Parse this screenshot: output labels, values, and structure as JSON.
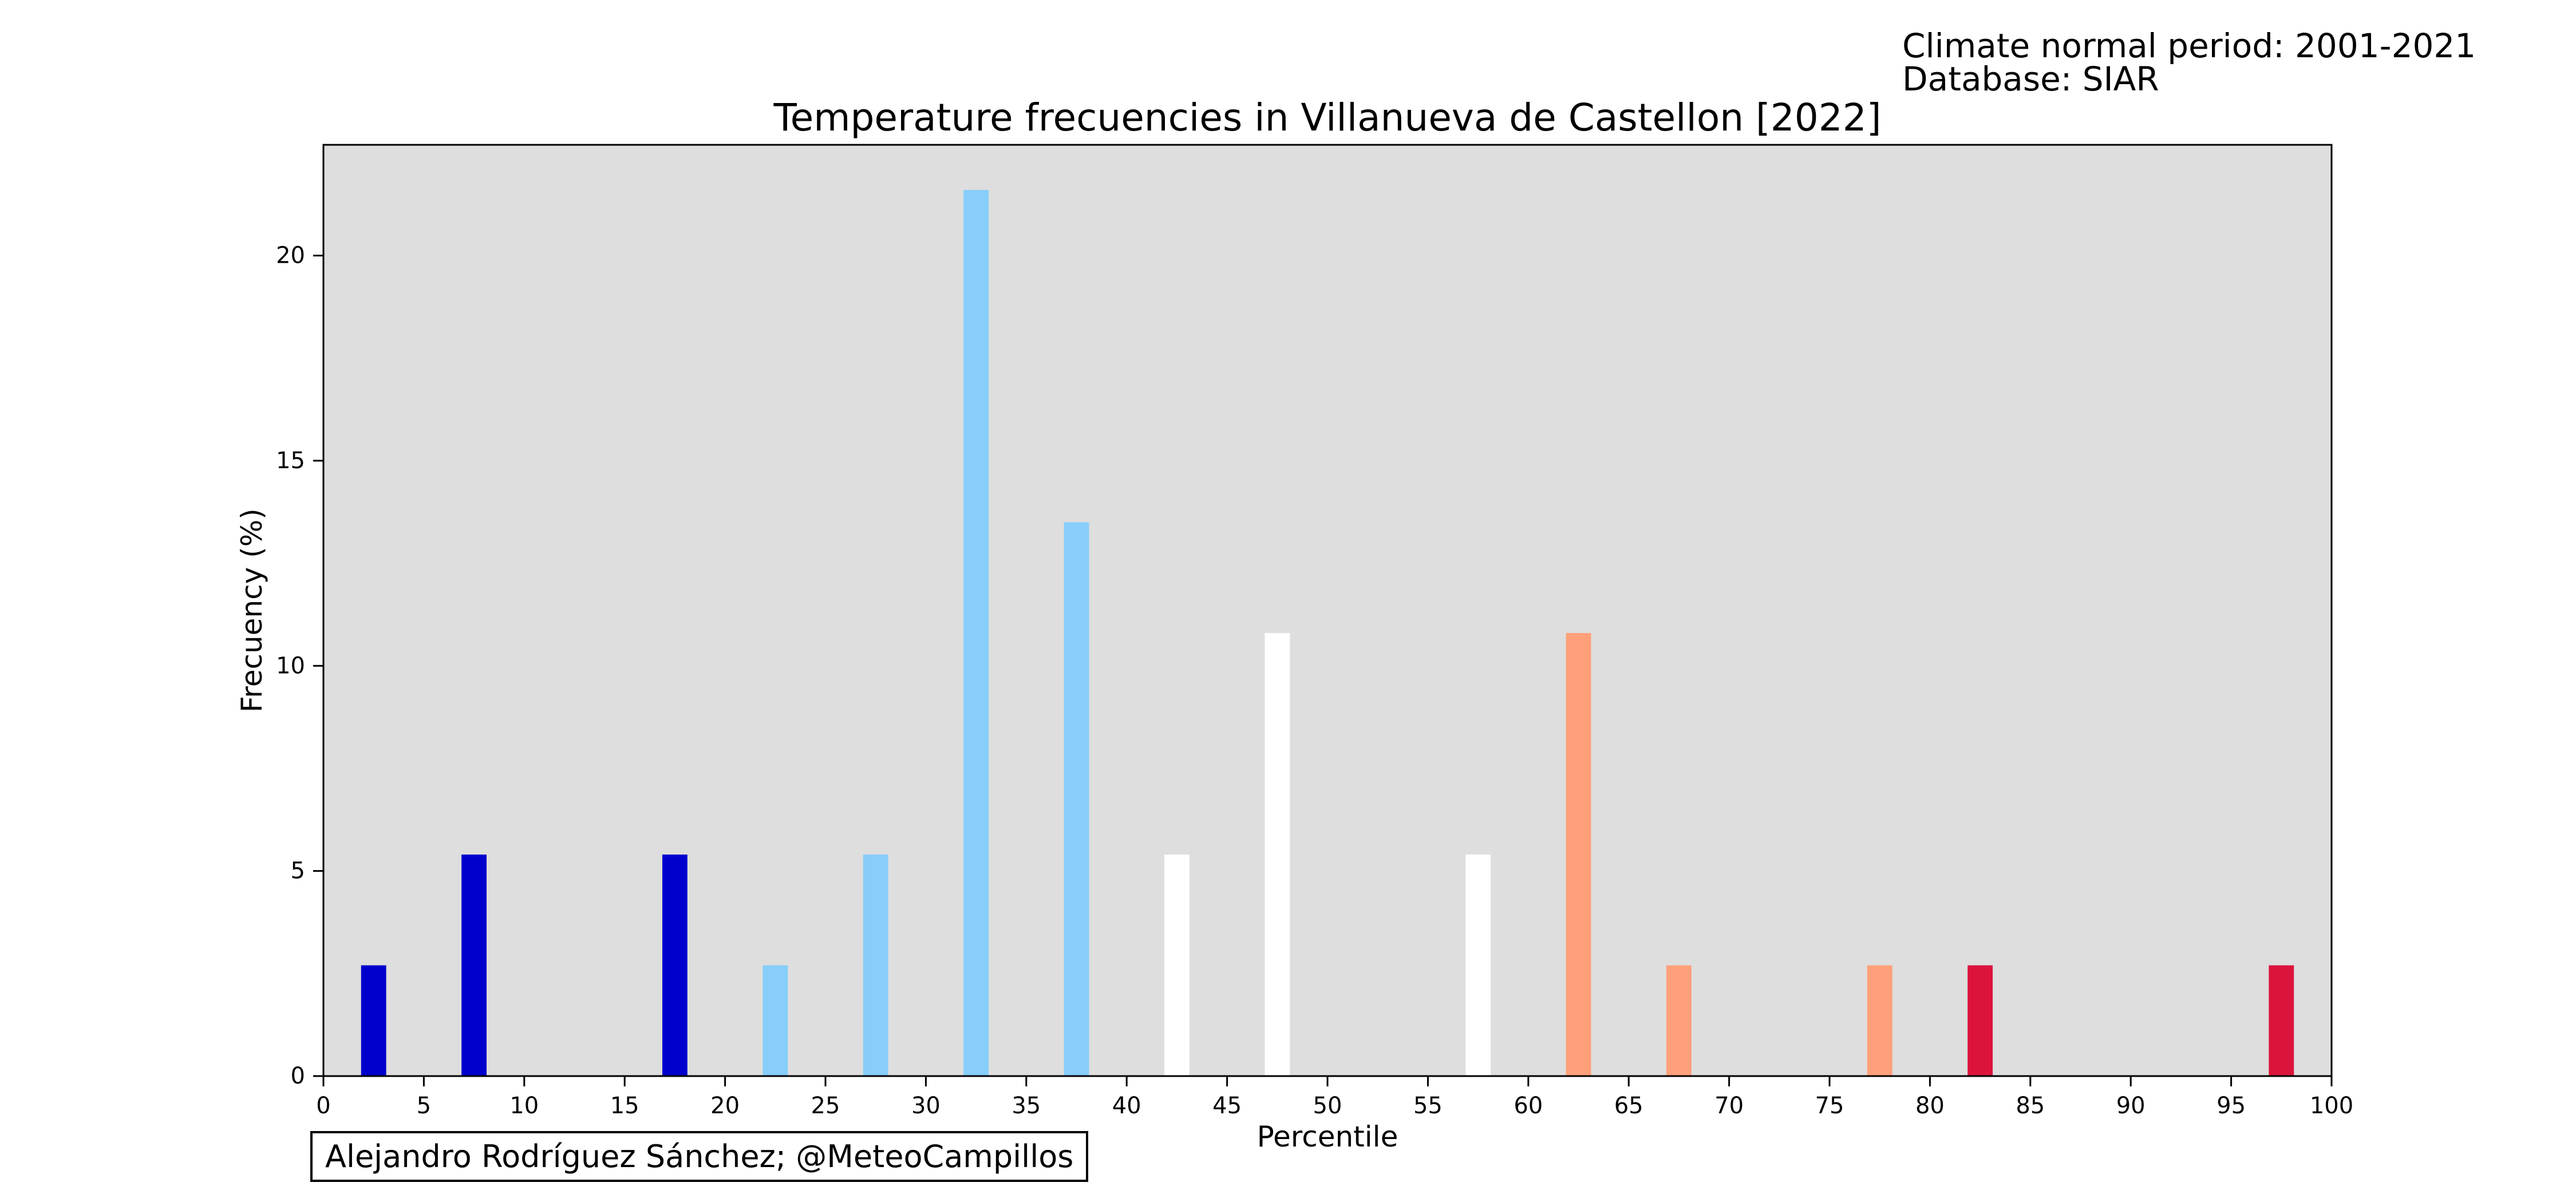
{
  "header": {
    "climate_period": "Climate normal period: 2001-2021",
    "database": "Database: SIAR"
  },
  "credit": "Alejandro Rodríguez Sánchez; @MeteoCampillos",
  "chart_data": {
    "type": "bar",
    "title": "Temperature frecuencies in Villanueva de Castellon [2022]",
    "xlabel": "Percentile",
    "ylabel": "Frecuency (%)",
    "xlim": [
      0,
      100
    ],
    "ylim": [
      0,
      22.7
    ],
    "xticks": [
      0,
      5,
      10,
      15,
      20,
      25,
      30,
      35,
      40,
      45,
      50,
      55,
      60,
      65,
      70,
      75,
      80,
      85,
      90,
      95,
      100
    ],
    "yticks": [
      0,
      5,
      10,
      15,
      20
    ],
    "bar_width": 1.25,
    "background_color": "#dedede",
    "grid": false,
    "legend": "none",
    "x": [
      2.5,
      7.5,
      12.5,
      17.5,
      22.5,
      27.5,
      32.5,
      37.5,
      42.5,
      47.5,
      52.5,
      57.5,
      62.5,
      67.5,
      72.5,
      77.5,
      82.5,
      87.5,
      92.5,
      97.5
    ],
    "values": [
      2.7,
      5.4,
      0,
      5.4,
      2.7,
      5.4,
      21.6,
      13.5,
      5.4,
      10.8,
      0,
      5.4,
      10.8,
      2.7,
      0,
      2.7,
      2.7,
      0,
      0,
      2.7
    ],
    "colors": [
      "#0000cd",
      "#0000cd",
      "#0000cd",
      "#0000cd",
      "#87cefa",
      "#87cefa",
      "#87cefa",
      "#87cefa",
      "#ffffff",
      "#ffffff",
      "#ffffff",
      "#ffffff",
      "#ffa07a",
      "#ffa07a",
      "#ffa07a",
      "#ffa07a",
      "#dc143c",
      "#dc143c",
      "#dc143c",
      "#dc143c"
    ]
  }
}
